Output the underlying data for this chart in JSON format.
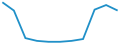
{
  "x": [
    0,
    1,
    2,
    3,
    4,
    5,
    6,
    7,
    8,
    9,
    10
  ],
  "y": [
    44,
    35,
    5,
    2,
    1,
    1,
    2,
    4,
    36,
    41,
    35
  ],
  "line_color": "#2090C8",
  "line_width": 1.3,
  "background_color": "#ffffff",
  "ylim": [
    -2,
    46
  ],
  "xlim": [
    -0.1,
    10.1
  ]
}
